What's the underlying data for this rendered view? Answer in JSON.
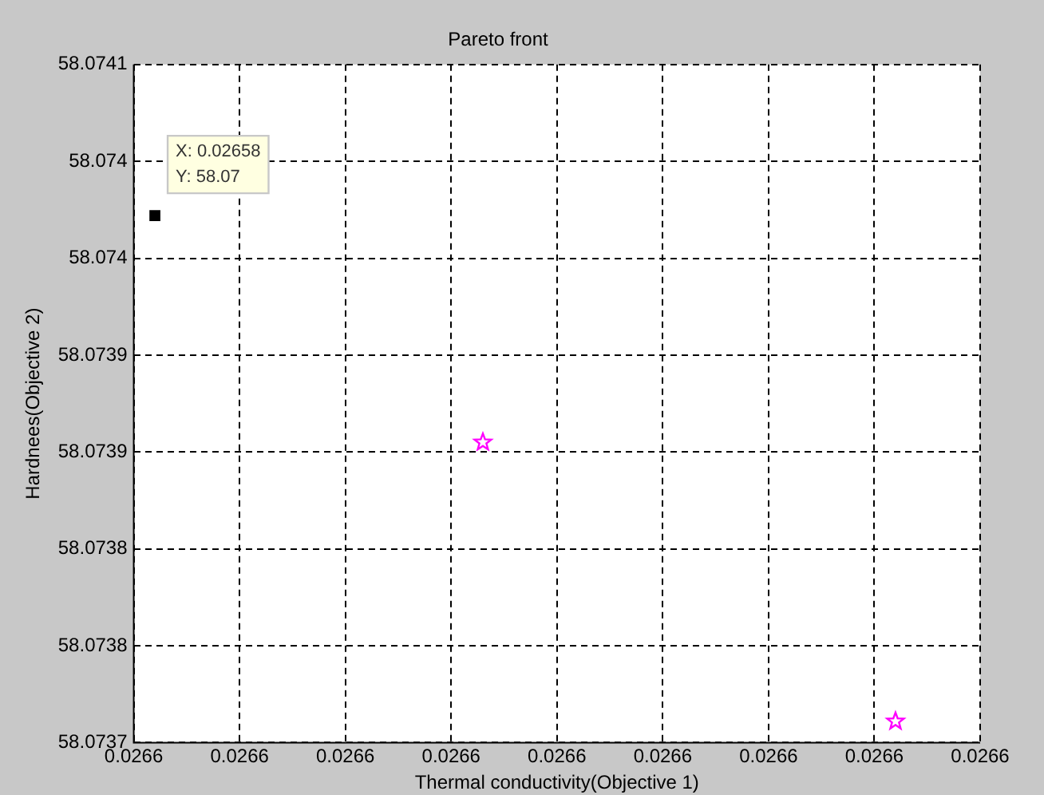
{
  "chart_data": {
    "type": "scatter",
    "title": "Pareto front",
    "xlabel": "Thermal conductivity(Objective 1)",
    "ylabel": "Hardnees(Objective 2)",
    "series": [
      {
        "color": "#ff00ff",
        "marker": "star",
        "x": [
          0.0265833,
          0.0265872
        ],
        "values": [
          58.073855,
          58.073711
        ]
      },
      {
        "color": "#000000",
        "marker": "square",
        "x": [
          0.0265802
        ],
        "values": [
          58.073972
        ]
      }
    ],
    "xlim": [
      0.02658,
      0.026588
    ],
    "xticks": [
      {
        "value": 0.02658,
        "label": "0.0266"
      },
      {
        "value": 0.026581,
        "label": "0.0266"
      },
      {
        "value": 0.026582,
        "label": "0.0266"
      },
      {
        "value": 0.026583,
        "label": "0.0266"
      },
      {
        "value": 0.026584,
        "label": "0.0266"
      },
      {
        "value": 0.026585,
        "label": "0.0266"
      },
      {
        "value": 0.026586,
        "label": "0.0266"
      },
      {
        "value": 0.026587,
        "label": "0.0266"
      },
      {
        "value": 0.026588,
        "label": "0.0266"
      }
    ],
    "ylim": [
      58.0737,
      58.07405
    ],
    "yticks": [
      58.0737,
      {
        "value": 58.07375,
        "label": "58.0738"
      },
      58.0738,
      {
        "value": 58.07385,
        "label": "58.0739"
      },
      58.0739,
      {
        "value": 58.07395,
        "label": "58.074"
      },
      {
        "value": 58.074,
        "label": "58.074"
      },
      {
        "value": 58.07405,
        "label": "58.0741"
      }
    ],
    "grid": true,
    "line_style": "dashed",
    "annotations": [
      {
        "text": "X: 0.02658\nY: 58.07",
        "x": 0.0265802,
        "y": 58.073972
      }
    ]
  }
}
